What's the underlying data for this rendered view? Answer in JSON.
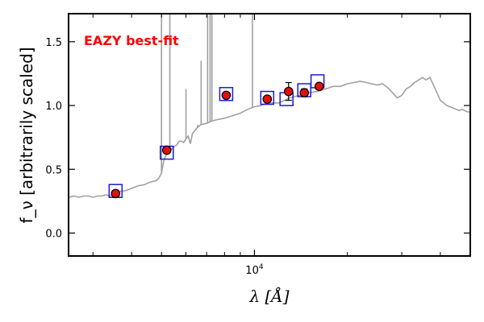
{
  "chart_data": {
    "type": "line",
    "title": "",
    "xlabel": "λ [Å]",
    "ylabel": "f_ν [arbitrarily scaled]",
    "xscale": "log",
    "xlim": [
      2500,
      50000
    ],
    "ylim": [
      -0.18,
      1.72
    ],
    "xticks": [
      {
        "value": 10000,
        "label": "10^4"
      }
    ],
    "yticks": [
      {
        "value": 0.0,
        "label": "0.0"
      },
      {
        "value": 0.5,
        "label": "0.5"
      },
      {
        "value": 1.0,
        "label": "1.0"
      },
      {
        "value": 1.5,
        "label": "1.5"
      }
    ],
    "annotation": {
      "text": "EAZY best-fit",
      "color": "#ff0000"
    },
    "template_color": "#a0a0a0",
    "model_color": "#1a1ad6",
    "observed_color": "#e01010",
    "template": {
      "name": "EAZY best-fit template",
      "x": [
        2500,
        2600,
        2700,
        2800,
        2900,
        3000,
        3100,
        3200,
        3300,
        3400,
        3500,
        3600,
        3700,
        3800,
        3900,
        4000,
        4200,
        4400,
        4600,
        4800,
        4900,
        5000,
        5100,
        5200,
        5300,
        5400,
        5500,
        5600,
        5700,
        5800,
        5900,
        6000,
        6100,
        6200,
        6300,
        6500,
        6700,
        7000,
        7300,
        7600,
        8000,
        8500,
        9000,
        9500,
        10000,
        10500,
        11000,
        12000,
        13000,
        14000,
        15000,
        16000,
        17000,
        18000,
        19000,
        20000,
        21000,
        22000,
        23000,
        24000,
        25000,
        26000,
        27000,
        28000,
        29000,
        30000,
        31000,
        32000,
        33000,
        34000,
        35000,
        36000,
        37000,
        38000,
        39000,
        40000,
        41000,
        42000,
        43000,
        44000,
        45000,
        46000,
        47000,
        48000,
        49000,
        50000
      ],
      "y": [
        0.28,
        0.29,
        0.28,
        0.29,
        0.29,
        0.28,
        0.29,
        0.29,
        0.3,
        0.29,
        0.3,
        0.31,
        0.33,
        0.33,
        0.34,
        0.35,
        0.37,
        0.38,
        0.4,
        0.41,
        0.43,
        0.47,
        0.58,
        0.62,
        0.64,
        0.66,
        0.68,
        0.69,
        0.72,
        0.72,
        0.71,
        0.74,
        0.76,
        0.7,
        0.78,
        0.82,
        0.85,
        0.86,
        0.88,
        0.89,
        0.9,
        0.92,
        0.94,
        0.97,
        0.99,
        1.0,
        1.02,
        1.02,
        1.06,
        1.08,
        1.1,
        1.11,
        1.13,
        1.15,
        1.15,
        1.17,
        1.18,
        1.19,
        1.18,
        1.17,
        1.16,
        1.17,
        1.14,
        1.1,
        1.06,
        1.08,
        1.13,
        1.15,
        1.18,
        1.2,
        1.22,
        1.2,
        1.22,
        1.16,
        1.1,
        1.04,
        1.02,
        1.0,
        0.99,
        0.98,
        0.97,
        0.96,
        0.97,
        0.96,
        0.95,
        0.95
      ]
    },
    "emission_lines": [
      {
        "x": 5000,
        "peak": 1.72
      },
      {
        "x": 5320,
        "peak": 1.72
      },
      {
        "x": 6000,
        "peak": 1.13
      },
      {
        "x": 6550,
        "peak": 0.85
      },
      {
        "x": 6720,
        "peak": 1.35
      },
      {
        "x": 7050,
        "peak": 1.72
      },
      {
        "x": 7180,
        "peak": 1.72
      },
      {
        "x": 7280,
        "peak": 1.72
      },
      {
        "x": 9850,
        "peak": 1.72
      }
    ],
    "series": [
      {
        "name": "model photometry",
        "marker": "square",
        "x": [
          3550,
          5200,
          8100,
          11000,
          12700,
          14500,
          16000
        ],
        "y": [
          0.33,
          0.63,
          1.09,
          1.06,
          1.05,
          1.12,
          1.19
        ]
      },
      {
        "name": "observed photometry",
        "marker": "circle",
        "x": [
          3550,
          5200,
          8100,
          11000,
          12900,
          14500,
          16200
        ],
        "y": [
          0.31,
          0.65,
          1.08,
          1.05,
          1.11,
          1.1,
          1.15
        ],
        "yerr": [
          0.01,
          0.02,
          0.02,
          0.02,
          0.07,
          0.03,
          0.02
        ]
      }
    ]
  }
}
